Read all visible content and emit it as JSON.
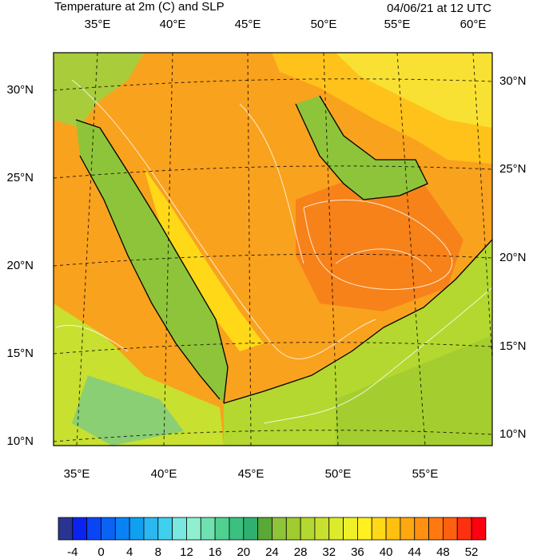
{
  "header": {
    "title": "Temperature at 2m (C) and SLP",
    "valid_time": "04/06/21 at 12 UTC"
  },
  "map": {
    "top_lon_labels": [
      "35°E",
      "40°E",
      "45°E",
      "50°E",
      "55°E",
      "60°E"
    ],
    "bottom_lon_labels": [
      "35°E",
      "40°E",
      "45°E",
      "50°E",
      "55°E"
    ],
    "left_lat_labels": [
      "30°N",
      "25°N",
      "20°N",
      "15°N",
      "10°N"
    ],
    "right_lat_labels": [
      "30°N",
      "25°N",
      "20°N",
      "15°N",
      "10°N"
    ]
  },
  "colorbar": {
    "labels": [
      -4,
      0,
      4,
      8,
      12,
      16,
      20,
      24,
      28,
      32,
      36,
      40,
      44,
      48,
      52
    ]
  }
}
